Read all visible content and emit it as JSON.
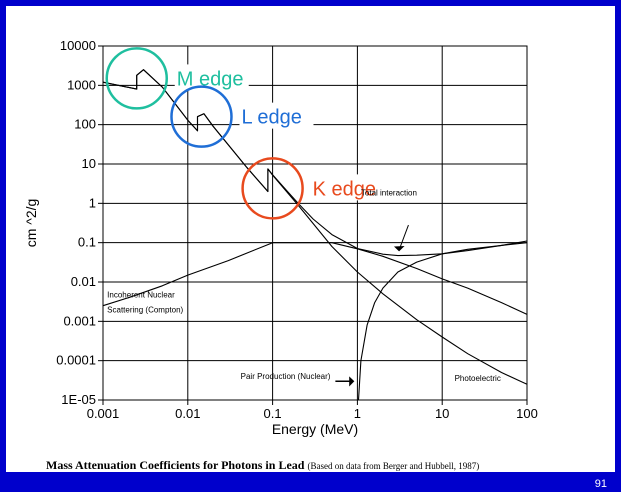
{
  "chart_data": {
    "type": "line",
    "xscale": "log",
    "yscale": "log",
    "xlim": [
      0.001,
      100
    ],
    "ylim": [
      1e-05,
      10000
    ],
    "xlabel": "Energy (MeV)",
    "ylabel": "cm ^2/g",
    "xticks": [
      "0.001",
      "0.01",
      "0.1",
      "1",
      "10",
      "100"
    ],
    "yticks": [
      "1E-05",
      "0.0001",
      "0.001",
      "0.01",
      "0.1",
      "1",
      "10",
      "100",
      "1000",
      "10000"
    ],
    "grid": "horizontal",
    "series": [
      {
        "name": "Total interaction",
        "x": [
          0.001,
          0.0025,
          0.0025,
          0.003,
          0.005,
          0.01,
          0.013,
          0.013,
          0.0155,
          0.02,
          0.05,
          0.088,
          0.088,
          0.1,
          0.15,
          0.2,
          0.3,
          0.5,
          1,
          2,
          3,
          5,
          10,
          20,
          50,
          100
        ],
        "y": [
          1200,
          800,
          1800,
          2500,
          900,
          130,
          70,
          160,
          190,
          90,
          8.0,
          2.0,
          7.5,
          5.3,
          2.0,
          1.0,
          0.4,
          0.16,
          0.071,
          0.051,
          0.047,
          0.048,
          0.052,
          0.063,
          0.085,
          0.11
        ]
      },
      {
        "name": "Photoelectric",
        "x": [
          0.001,
          0.0025,
          0.0025,
          0.003,
          0.005,
          0.01,
          0.013,
          0.013,
          0.0155,
          0.02,
          0.05,
          0.088,
          0.088,
          0.1,
          0.2,
          0.5,
          1,
          2,
          5,
          10,
          20,
          50,
          100
        ],
        "y": [
          1200,
          800,
          1800,
          2500,
          900,
          130,
          70,
          160,
          190,
          90,
          8.0,
          2.0,
          7.5,
          5.2,
          0.9,
          0.08,
          0.018,
          0.005,
          0.0011,
          0.0004,
          0.00015,
          5e-05,
          2.5e-05
        ]
      },
      {
        "name": "Incoherent Nuclear Scattering (Compton)",
        "x": [
          0.001,
          0.002,
          0.005,
          0.01,
          0.03,
          0.1,
          0.5,
          1,
          2,
          5,
          10,
          20,
          50,
          100
        ],
        "y": [
          0.0025,
          0.004,
          0.008,
          0.015,
          0.035,
          0.1,
          0.1,
          0.07,
          0.045,
          0.022,
          0.012,
          0.007,
          0.003,
          0.0015
        ]
      },
      {
        "name": "Pair Production (Nuclear)",
        "x": [
          1.03,
          1.1,
          1.3,
          1.6,
          2,
          3,
          5,
          10,
          20,
          50,
          100
        ],
        "y": [
          1e-05,
          0.0001,
          0.0008,
          0.003,
          0.007,
          0.018,
          0.032,
          0.052,
          0.068,
          0.085,
          0.1
        ]
      }
    ],
    "annotations": [
      {
        "text": "M edge",
        "x": 0.0025,
        "y": 1500,
        "color": "#1fbf9f"
      },
      {
        "text": "L edge",
        "x": 0.0145,
        "y": 160,
        "color": "#1f6ed6"
      },
      {
        "text": "K edge",
        "x": 0.1,
        "y": 2.4,
        "color": "#e84a1e"
      }
    ],
    "inline_labels": {
      "total": "Total interaction",
      "compton_1": "Incoherent Nuclear",
      "compton_2": "Scattering (Compton)",
      "pair": "Pair Production (Nuclear)",
      "photo": "Photoelectric"
    }
  },
  "caption": {
    "main": "Mass Attenuation Coefficients for Photons in Lead",
    "source": "(Based on data from Berger and Hubbell, 1987)"
  },
  "page_number": "91"
}
